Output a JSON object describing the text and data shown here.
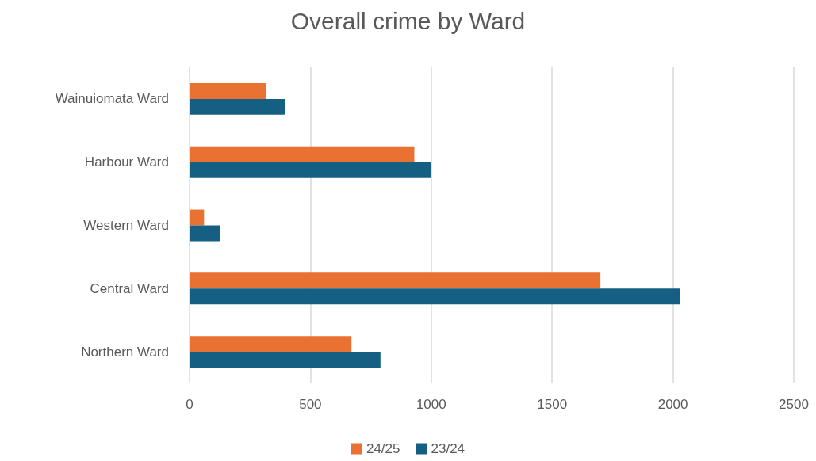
{
  "chart_data": {
    "type": "bar",
    "orientation": "horizontal",
    "title": "Overall crime by Ward",
    "categories": [
      "Wainuiomata Ward",
      "Harbour Ward",
      "Western Ward",
      "Central Ward",
      "Northern Ward"
    ],
    "series": [
      {
        "name": "24/25",
        "color": "#e97132",
        "values": [
          315,
          930,
          60,
          1700,
          670
        ]
      },
      {
        "name": "23/24",
        "color": "#156082",
        "values": [
          397,
          1000,
          127,
          2030,
          790
        ]
      }
    ],
    "xlim": [
      0,
      2500
    ],
    "xticks": [
      0,
      500,
      1000,
      1500,
      2000,
      2500
    ],
    "grid": "x",
    "legend": "bottom"
  }
}
